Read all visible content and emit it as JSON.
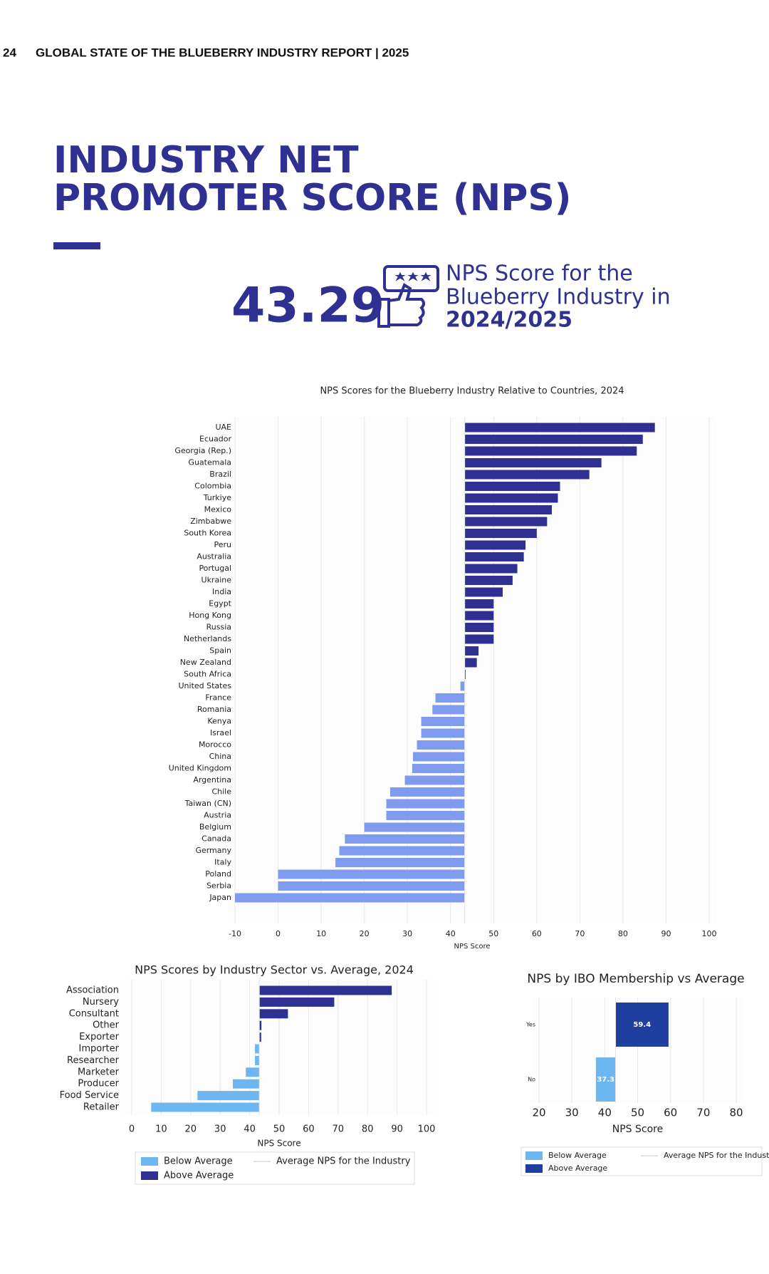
{
  "header": {
    "page_number": "24",
    "report": "GLOBAL STATE OF THE BLUEBERRY INDUSTRY REPORT | 2025"
  },
  "headline": [
    "INDUSTRY NET",
    "PROMOTER SCORE (NPS)"
  ],
  "nps": {
    "value": "43.29",
    "caption": [
      "NPS Score for the",
      "Blueberry Industry in",
      "2024/2025"
    ]
  },
  "chart_data": [
    {
      "type": "bar",
      "orientation": "horizontal",
      "title": "NPS Scores for the Blueberry Industry Relative to Countries, 2024",
      "x_label": "NPS Score",
      "categories": [
        "UAE",
        "Ecuador",
        "Georgia (Rep.)",
        "Guatemala",
        "Brazil",
        "Colombia",
        "Turkiye",
        "Mexico",
        "Zimbabwe",
        "South Korea",
        "Peru",
        "Australia",
        "Portugal",
        "Ukraine",
        "India",
        "Egypt",
        "Hong Kong",
        "Russia",
        "Netherlands",
        "Spain",
        "New Zealand",
        "South Africa",
        "United States",
        "France",
        "Romania",
        "Kenya",
        "Israel",
        "Morocco",
        "China",
        "United Kingdom",
        "Argentina",
        "Chile",
        "Taiwan (CN)",
        "Austria",
        "Belgium",
        "Canada",
        "Germany",
        "Italy",
        "Poland",
        "Serbia",
        "Japan"
      ],
      "values": [
        87.4,
        84.6,
        83.2,
        75,
        72.2,
        65.4,
        64.9,
        63.5,
        62.4,
        60,
        57.4,
        57,
        55.5,
        54.4,
        52.1,
        50,
        50,
        50,
        50,
        46.5,
        46.1,
        43.5,
        42.3,
        36.5,
        35.8,
        33.2,
        33.2,
        32.2,
        31.3,
        31.1,
        29.4,
        26,
        25.1,
        25.1,
        20,
        15.5,
        14.2,
        13.3,
        0,
        0,
        -10
      ],
      "average": 43.29,
      "colors": {
        "above": "#2e3192",
        "below": "#7e9bef"
      },
      "xlim": [
        -10,
        100
      ],
      "xticks": [
        -10,
        0,
        10,
        20,
        30,
        40,
        50,
        60,
        70,
        80,
        90,
        100
      ],
      "grid": true
    },
    {
      "type": "bar",
      "orientation": "horizontal",
      "title": "NPS Scores by Industry Sector vs. Average, 2024",
      "x_label": "NPS Score",
      "categories": [
        "Association",
        "Nursery",
        "Consultant",
        "Other",
        "Exporter",
        "Importer",
        "Researcher",
        "Marketer",
        "Producer",
        "Food Service",
        "Retailer"
      ],
      "values": [
        88.2,
        68.7,
        53,
        44,
        43.9,
        41.8,
        41.8,
        38.7,
        34.3,
        22.3,
        6.6
      ],
      "average": 43.29,
      "colors": {
        "above": "#2e3192",
        "below": "#6cb6f2",
        "average": "#e4e4e4"
      },
      "xlim": [
        0,
        100
      ],
      "xticks": [
        0,
        10,
        20,
        30,
        40,
        50,
        60,
        70,
        80,
        90,
        100
      ],
      "grid": true,
      "legend": [
        {
          "name": "Below Average",
          "kind": "below"
        },
        {
          "name": "Above Average",
          "kind": "above"
        },
        {
          "name": "Average NPS for the Industry",
          "kind": "average"
        }
      ]
    },
    {
      "type": "bar",
      "orientation": "horizontal",
      "title": "NPS by IBO Membership vs Average",
      "x_label": "NPS Score",
      "categories": [
        "Yes",
        "No"
      ],
      "values": [
        59.4,
        37.3
      ],
      "average": 43.29,
      "colors": {
        "above": "#1f3fa0",
        "below": "#6cb6f2",
        "average": "#e4e4e4"
      },
      "xlim": [
        20,
        80
      ],
      "xticks": [
        20,
        30,
        40,
        50,
        60,
        70,
        80
      ],
      "grid": true,
      "data_labels": true,
      "legend": [
        {
          "name": "Below Average",
          "kind": "below"
        },
        {
          "name": "Above Average",
          "kind": "above"
        },
        {
          "name": "Average NPS for the Industry",
          "kind": "average"
        }
      ]
    }
  ]
}
